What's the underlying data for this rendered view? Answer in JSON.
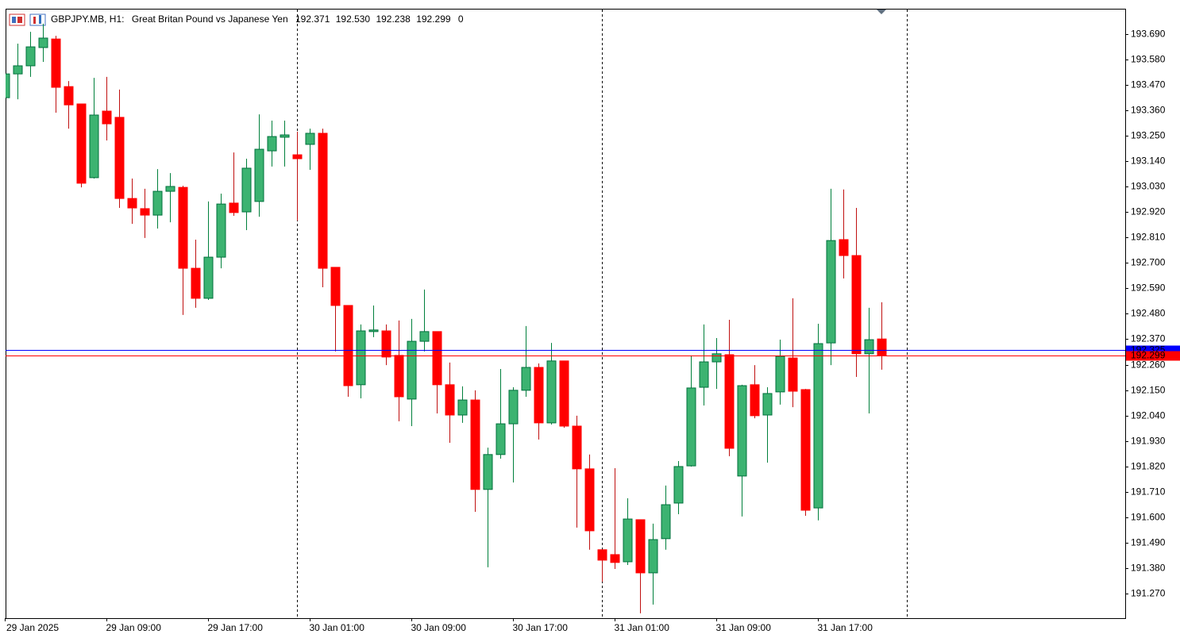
{
  "chart_data": {
    "type": "candlestick",
    "header": {
      "symbol": "GBPJPY.MB, H1:",
      "description": "Great Britan Pound vs Japanese Yen",
      "ohlc": [
        "192.371",
        "192.530",
        "192.238",
        "192.299"
      ],
      "volume": "0"
    },
    "categories": [
      "29 Jan 2025",
      null,
      null,
      null,
      null,
      null,
      null,
      null,
      "29 Jan 09:00",
      null,
      null,
      null,
      null,
      null,
      null,
      null,
      "29 Jan 17:00",
      null,
      null,
      null,
      null,
      null,
      null,
      null,
      "30 Jan 01:00",
      null,
      null,
      null,
      null,
      null,
      null,
      null,
      "30 Jan 09:00",
      null,
      null,
      null,
      null,
      null,
      null,
      null,
      "30 Jan 17:00",
      null,
      null,
      null,
      null,
      null,
      null,
      null,
      "31 Jan 01:00",
      null,
      null,
      null,
      null,
      null,
      null,
      null,
      "31 Jan 09:00",
      null,
      null,
      null,
      null,
      null,
      null,
      null,
      "31 Jan 17:00",
      null,
      null,
      null,
      null,
      null
    ],
    "open": [
      193.415,
      193.518,
      193.553,
      193.632,
      193.669,
      193.463,
      193.388,
      193.069,
      193.357,
      193.33,
      192.979,
      192.935,
      192.907,
      193.01,
      193.027,
      192.677,
      192.547,
      192.725,
      192.959,
      192.921,
      192.966,
      193.185,
      193.244,
      193.168,
      193.213,
      193.261,
      192.681,
      192.516,
      192.173,
      192.403,
      192.406,
      192.3,
      192.111,
      192.361,
      192.403,
      192.173,
      192.042,
      192.107,
      191.72,
      191.871,
      192.004,
      192.149,
      192.248,
      192.008,
      192.276,
      191.994,
      191.809,
      191.459,
      191.438,
      191.407,
      191.589,
      191.359,
      191.507,
      191.661,
      191.822,
      192.162,
      192.272,
      192.303,
      191.778,
      192.173,
      192.042,
      192.142,
      192.289,
      192.152,
      191.64,
      192.354,
      192.801,
      192.732,
      192.307,
      192.371
    ],
    "high": [
      193.529,
      193.649,
      193.7,
      193.735,
      193.683,
      193.487,
      193.388,
      193.501,
      193.505,
      193.45,
      193.065,
      193.021,
      193.106,
      193.089,
      193.034,
      192.801,
      192.966,
      193.0,
      193.178,
      193.151,
      193.343,
      193.316,
      193.316,
      193.268,
      193.281,
      193.281,
      192.681,
      192.516,
      192.434,
      192.516,
      192.434,
      192.451,
      192.458,
      192.585,
      192.403,
      192.269,
      192.166,
      192.149,
      191.901,
      192.241,
      192.162,
      192.427,
      192.265,
      192.354,
      192.276,
      192.039,
      191.871,
      191.459,
      191.812,
      191.682,
      191.589,
      191.572,
      191.737,
      191.843,
      192.3,
      192.434,
      192.375,
      192.454,
      192.173,
      192.258,
      192.162,
      192.368,
      192.547,
      192.155,
      192.437,
      193.021,
      193.018,
      192.938,
      192.506,
      192.53
    ],
    "low": [
      193.408,
      193.408,
      193.505,
      193.57,
      193.35,
      193.281,
      193.027,
      193.065,
      193.23,
      192.938,
      192.869,
      192.808,
      192.849,
      192.876,
      192.475,
      192.506,
      192.54,
      192.677,
      192.904,
      192.842,
      192.9,
      193.117,
      193.117,
      192.883,
      193.103,
      192.595,
      192.317,
      192.121,
      192.114,
      192.379,
      192.258,
      192.015,
      191.994,
      192.317,
      192.049,
      191.922,
      192.008,
      191.623,
      191.383,
      191.853,
      191.75,
      192.121,
      191.936,
      192.001,
      191.987,
      191.555,
      191.459,
      191.321,
      191.376,
      191.393,
      191.184,
      191.222,
      191.459,
      191.613,
      191.819,
      192.083,
      192.155,
      191.864,
      191.603,
      192.028,
      191.836,
      192.087,
      192.076,
      191.606,
      191.586,
      192.258,
      192.633,
      192.207,
      192.049,
      192.238
    ],
    "close": [
      193.518,
      193.553,
      193.635,
      193.673,
      193.46,
      193.384,
      193.045,
      193.34,
      193.302,
      192.979,
      192.938,
      192.907,
      193.01,
      193.031,
      192.677,
      192.547,
      192.725,
      192.955,
      192.918,
      193.11,
      193.192,
      193.247,
      193.254,
      193.151,
      193.261,
      192.677,
      192.516,
      192.169,
      192.406,
      192.41,
      192.293,
      192.121,
      192.361,
      192.403,
      192.173,
      192.042,
      192.107,
      191.72,
      191.871,
      192.004,
      192.149,
      192.248,
      192.008,
      192.276,
      191.994,
      191.809,
      191.541,
      191.414,
      191.404,
      191.592,
      191.359,
      191.503,
      191.654,
      191.819,
      192.159,
      192.272,
      192.307,
      191.898,
      192.169,
      192.039,
      192.135,
      192.296,
      192.145,
      191.63,
      192.351,
      192.797,
      192.732,
      192.307,
      192.368,
      192.299
    ],
    "up_color": "#3cb371",
    "down_color": "#ff0000",
    "bid": 192.299,
    "ask": 192.325,
    "bid_color": "#ff0000",
    "ask_color": "#0000ff",
    "ylim": [
      191.163,
      193.8
    ],
    "yticks": [
      {
        "value": 193.69,
        "label": "193.690"
      },
      {
        "value": 193.58,
        "label": "193.580"
      },
      {
        "value": 193.47,
        "label": "193.470"
      },
      {
        "value": 193.36,
        "label": "193.360"
      },
      {
        "value": 193.25,
        "label": "193.250"
      },
      {
        "value": 193.14,
        "label": "193.140"
      },
      {
        "value": 193.03,
        "label": "193.030"
      },
      {
        "value": 192.92,
        "label": "192.920"
      },
      {
        "value": 192.81,
        "label": "192.810"
      },
      {
        "value": 192.7,
        "label": "192.700"
      },
      {
        "value": 192.59,
        "label": "192.590"
      },
      {
        "value": 192.48,
        "label": "192.480"
      },
      {
        "value": 192.37,
        "label": "192.370"
      },
      {
        "value": 192.26,
        "label": "192.260"
      },
      {
        "value": 192.15,
        "label": "192.150"
      },
      {
        "value": 192.04,
        "label": "192.040"
      },
      {
        "value": 191.93,
        "label": "191.930"
      },
      {
        "value": 191.82,
        "label": "191.820"
      },
      {
        "value": 191.71,
        "label": "191.710"
      },
      {
        "value": 191.6,
        "label": "191.600"
      },
      {
        "value": 191.49,
        "label": "191.490"
      },
      {
        "value": 191.38,
        "label": "191.380"
      },
      {
        "value": 191.27,
        "label": "191.270"
      }
    ]
  }
}
